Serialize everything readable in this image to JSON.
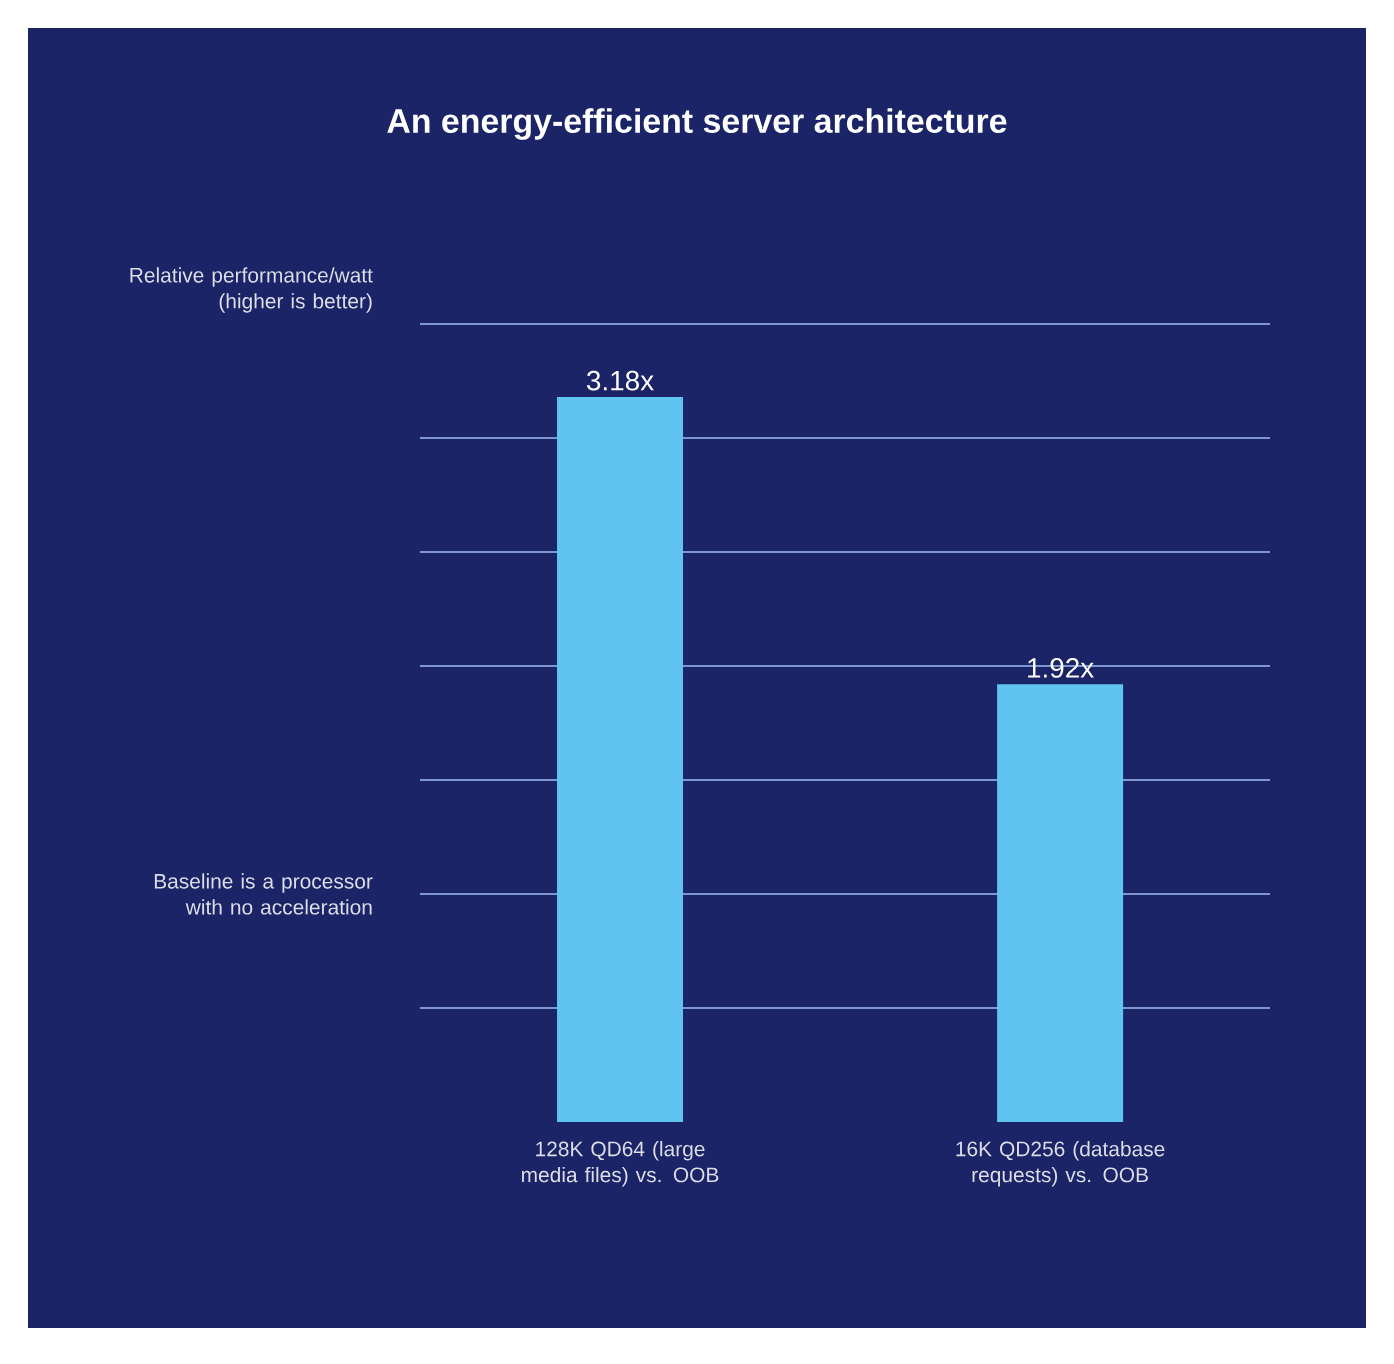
{
  "chart_data": {
    "type": "bar",
    "title": "An energy-efficient server architecture",
    "ylabel": "Relative performance/watt (higher is better)",
    "annotations": [
      "Baseline is a processor with no acceleration"
    ],
    "categories": [
      "128K QD64 (large media files) vs. OOB",
      "16K QD256 (database requests) vs. OOB"
    ],
    "values": [
      3.18,
      1.92
    ],
    "value_labels": [
      "3.18x",
      "1.92x"
    ],
    "color": "#5fc4f0",
    "ylim": [
      0,
      3.5
    ],
    "yticks": [
      {
        "value": 0.5,
        "label": null
      },
      {
        "value": 1.0,
        "label": null
      },
      {
        "value": 1.5,
        "label": null
      },
      {
        "value": 2.0,
        "label": null
      },
      {
        "value": 2.5,
        "label": null
      },
      {
        "value": 3.0,
        "label": null
      },
      {
        "value": 3.5,
        "label": null
      }
    ],
    "grid": "y",
    "tick_labels": "x"
  }
}
